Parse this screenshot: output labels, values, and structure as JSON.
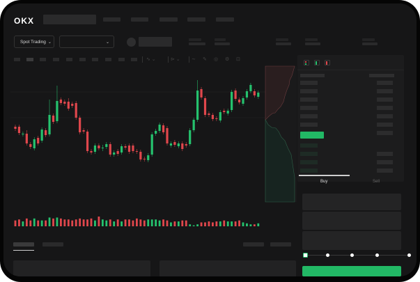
{
  "header": {
    "logo": "OKX"
  },
  "toolbar": {
    "market_button": "Spot Trading"
  },
  "trade_panel": {
    "tabs": [
      {
        "label": "Buy",
        "active": true
      },
      {
        "label": "Sell",
        "active": false
      }
    ],
    "leverage_steps": 5,
    "leverage_selected": 0
  },
  "colors": {
    "up": "#25c26e",
    "down": "#e0474c",
    "background": "#161617",
    "primary_button": "#22b865"
  },
  "icons": [
    "chevron-down-icon",
    "orderbook-both-icon",
    "orderbook-buy-icon",
    "orderbook-sell-icon"
  ],
  "chart_data": {
    "type": "candlestick",
    "ohlc": [
      [
        118,
        121,
        112,
        115
      ],
      [
        118,
        121,
        106,
        109
      ],
      [
        107,
        111,
        104,
        108
      ],
      [
        108,
        113,
        91,
        94
      ],
      [
        93,
        96,
        86,
        89
      ],
      [
        87,
        103,
        84,
        100
      ],
      [
        102,
        105,
        91,
        94
      ],
      [
        98,
        117,
        95,
        114
      ],
      [
        113,
        116,
        103,
        106
      ],
      [
        107,
        157,
        104,
        135
      ],
      [
        134,
        137,
        122,
        125
      ],
      [
        126,
        177,
        123,
        155
      ],
      [
        157,
        160,
        149,
        152
      ],
      [
        154,
        157,
        148,
        151
      ],
      [
        154,
        159,
        141,
        144
      ],
      [
        151,
        154,
        145,
        148
      ],
      [
        152,
        155,
        128,
        131
      ],
      [
        131,
        134,
        107,
        110
      ],
      [
        113,
        116,
        108,
        111
      ],
      [
        111,
        114,
        80,
        83
      ],
      [
        83,
        86,
        78,
        81
      ],
      [
        82,
        94,
        79,
        91
      ],
      [
        91,
        94,
        84,
        87
      ],
      [
        87,
        92,
        83,
        88
      ],
      [
        89,
        96,
        86,
        93
      ],
      [
        93,
        96,
        75,
        78
      ],
      [
        78,
        84,
        75,
        81
      ],
      [
        83,
        86,
        76,
        79
      ],
      [
        81,
        93,
        78,
        90
      ],
      [
        90,
        93,
        85,
        88
      ],
      [
        91,
        94,
        79,
        82
      ],
      [
        91,
        94,
        80,
        83
      ],
      [
        83,
        86,
        79,
        82
      ],
      [
        82,
        85,
        68,
        71
      ],
      [
        72,
        75,
        68,
        71
      ],
      [
        70,
        80,
        67,
        77
      ],
      [
        78,
        110,
        75,
        107
      ],
      [
        108,
        115,
        105,
        112
      ],
      [
        112,
        124,
        109,
        121
      ],
      [
        120,
        123,
        107,
        110
      ],
      [
        116,
        119,
        91,
        94
      ],
      [
        91,
        97,
        88,
        94
      ],
      [
        96,
        99,
        89,
        92
      ],
      [
        90,
        97,
        87,
        94
      ],
      [
        94,
        97,
        83,
        86
      ],
      [
        93,
        96,
        88,
        91
      ],
      [
        93,
        116,
        90,
        113
      ],
      [
        113,
        131,
        110,
        128
      ],
      [
        128,
        185,
        125,
        170
      ],
      [
        172,
        175,
        157,
        160
      ],
      [
        159,
        162,
        132,
        135
      ],
      [
        137,
        140,
        132,
        135
      ],
      [
        135,
        138,
        126,
        129
      ],
      [
        130,
        133,
        126,
        129
      ],
      [
        127,
        142,
        124,
        139
      ],
      [
        141,
        144,
        136,
        139
      ],
      [
        137,
        144,
        134,
        141
      ],
      [
        142,
        171,
        139,
        168
      ],
      [
        170,
        173,
        155,
        158
      ],
      [
        157,
        160,
        150,
        153
      ],
      [
        151,
        162,
        148,
        159
      ],
      [
        160,
        172,
        157,
        169
      ],
      [
        169,
        181,
        166,
        178
      ],
      [
        169,
        172,
        160,
        163
      ],
      [
        161,
        170,
        158,
        167
      ]
    ],
    "volume": [
      6,
      7,
      5,
      8,
      6,
      8,
      6,
      6,
      6,
      9,
      8,
      9,
      8,
      7,
      7,
      6,
      7,
      8,
      7,
      7,
      8,
      6,
      10,
      7,
      6,
      7,
      5,
      7,
      5,
      7,
      7,
      6,
      8,
      7,
      6,
      7,
      7,
      7,
      6,
      7,
      6,
      4,
      5,
      5,
      6,
      6,
      2,
      1,
      2,
      4,
      4,
      5,
      4,
      5,
      5,
      6,
      5,
      5,
      5,
      6,
      4,
      3,
      2,
      2,
      3
    ],
    "grid": false
  }
}
